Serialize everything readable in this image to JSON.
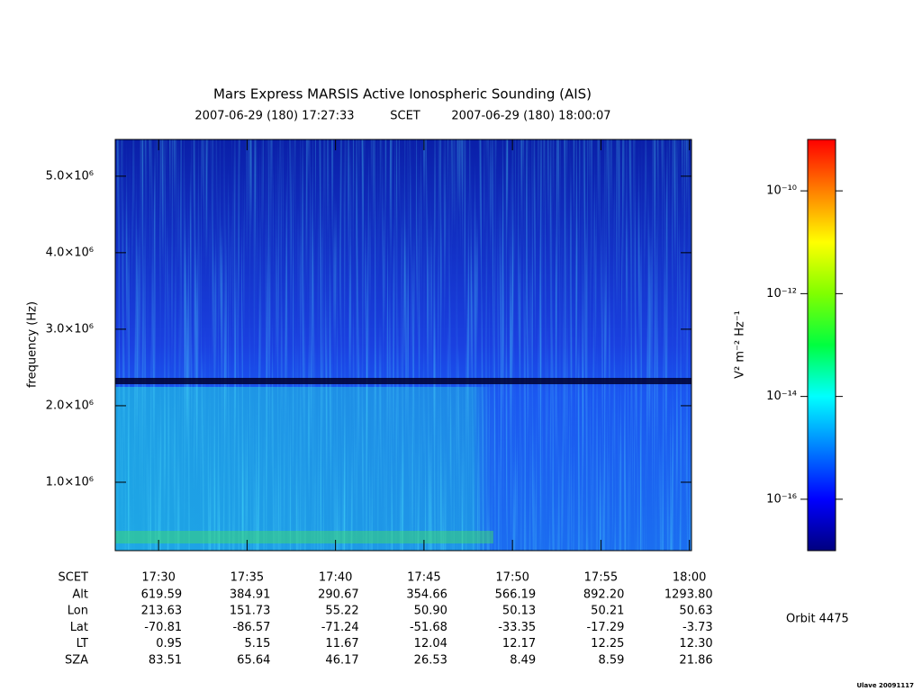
{
  "chart_data": {
    "type": "spectrogram",
    "title": "Mars Express MARSIS Active Ionospheric Sounding (AIS)",
    "time_start": "2007-06-29 (180) 17:27:33",
    "time_system": "SCET",
    "time_end": "2007-06-29 (180) 18:00:07",
    "ylabel": "frequency (Hz)",
    "xlim": [
      27.55,
      60.12
    ],
    "xticks": [
      {
        "value": 30,
        "label": "17:30"
      },
      {
        "value": 35,
        "label": "17:35"
      },
      {
        "value": 40,
        "label": "17:40"
      },
      {
        "value": 45,
        "label": "17:45"
      },
      {
        "value": 50,
        "label": "17:50"
      },
      {
        "value": 55,
        "label": "17:55"
      },
      {
        "value": 60,
        "label": "18:00"
      }
    ],
    "ylim": [
      106000,
      5480000
    ],
    "yticks": [
      {
        "value": 1000000,
        "label": "1.0×10⁶"
      },
      {
        "value": 2000000,
        "label": "2.0×10⁶"
      },
      {
        "value": 3000000,
        "label": "3.0×10⁶"
      },
      {
        "value": 4000000,
        "label": "4.0×10⁶"
      },
      {
        "value": 5000000,
        "label": "5.0×10⁶"
      }
    ],
    "colorbar": {
      "label": "V² m⁻² Hz⁻¹",
      "log_scale": true,
      "lim": [
        1e-17,
        1e-09
      ],
      "ticks": [
        {
          "value": 1e-10,
          "label": "10⁻¹⁰"
        },
        {
          "value": 1e-12,
          "label": "10⁻¹²"
        },
        {
          "value": 1e-14,
          "label": "10⁻¹⁴"
        },
        {
          "value": 1e-16,
          "label": "10⁻¹⁶"
        }
      ],
      "colormap": [
        "#00007f",
        "#0000ff",
        "#0080ff",
        "#00ffff",
        "#00ff40",
        "#80ff00",
        "#ffff00",
        "#ff8000",
        "#ff0000"
      ]
    },
    "ephemeris": {
      "time_label": "SCET",
      "rows": [
        {
          "label": "Alt",
          "values": [
            "619.59",
            "384.91",
            "290.67",
            "354.66",
            "566.19",
            "892.20",
            "1293.80"
          ]
        },
        {
          "label": "Lon",
          "values": [
            "213.63",
            "151.73",
            "55.22",
            "50.90",
            "50.13",
            "50.21",
            "50.63"
          ]
        },
        {
          "label": "Lat",
          "values": [
            "-70.81",
            "-86.57",
            "-71.24",
            "-51.68",
            "-33.35",
            "-17.29",
            "-3.73"
          ]
        },
        {
          "label": "LT",
          "values": [
            "0.95",
            "5.15",
            "11.67",
            "12.04",
            "12.17",
            "12.25",
            "12.30"
          ]
        },
        {
          "label": "SZA",
          "values": [
            "83.51",
            "65.64",
            "46.17",
            "26.53",
            "8.49",
            "8.59",
            "21.86"
          ]
        }
      ]
    },
    "orbit": "Orbit 4475",
    "footer": "Ulave 20091117"
  }
}
